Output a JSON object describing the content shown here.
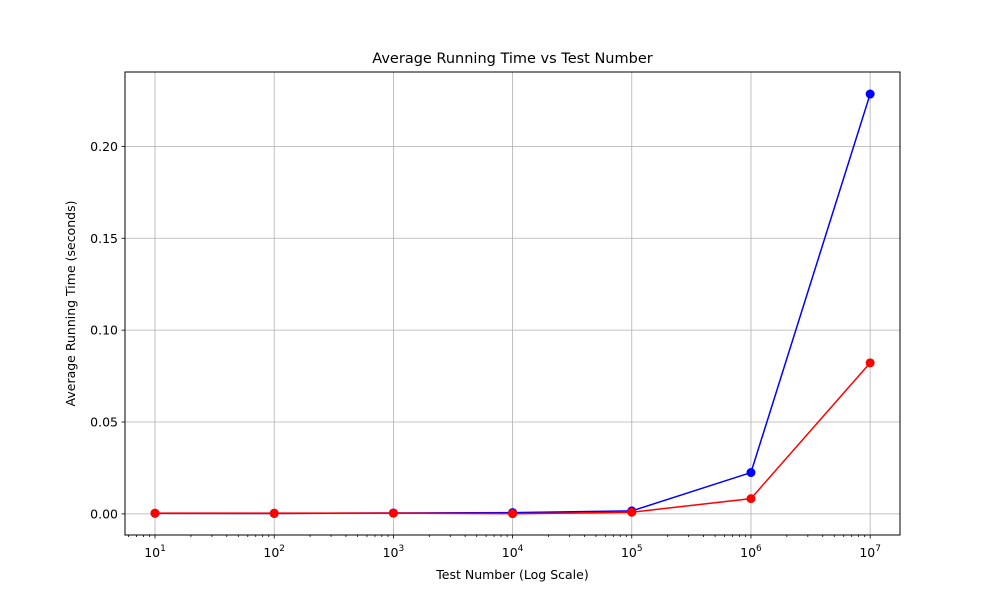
{
  "chart_data": {
    "type": "line",
    "title": "Average Running Time vs Test Number",
    "xlabel": "Test Number (Log Scale)",
    "ylabel": "Average Running Time (seconds)",
    "xscale": "log",
    "x": [
      10,
      100,
      1000,
      10000,
      100000,
      1000000,
      10000000
    ],
    "xlim": [
      5.6,
      17800000
    ],
    "xticks": [
      {
        "value": 10,
        "base": "10",
        "exp": "1"
      },
      {
        "value": 100,
        "base": "10",
        "exp": "2"
      },
      {
        "value": 1000,
        "base": "10",
        "exp": "3"
      },
      {
        "value": 10000,
        "base": "10",
        "exp": "4"
      },
      {
        "value": 100000,
        "base": "10",
        "exp": "5"
      },
      {
        "value": 1000000,
        "base": "10",
        "exp": "6"
      },
      {
        "value": 10000000,
        "base": "10",
        "exp": "7"
      }
    ],
    "ylim": [
      -0.0115,
      0.2405
    ],
    "yticks": [
      {
        "value": 0.0,
        "label": "0.00"
      },
      {
        "value": 0.05,
        "label": "0.05"
      },
      {
        "value": 0.1,
        "label": "0.10"
      },
      {
        "value": 0.15,
        "label": "0.15"
      },
      {
        "value": 0.2,
        "label": "0.20"
      }
    ],
    "grid": true,
    "series": [
      {
        "color": "#0000ff",
        "marker": "circle",
        "values": [
          0.0003,
          0.0002,
          0.0005,
          0.0007,
          0.0016,
          0.0225,
          0.2285
        ]
      },
      {
        "color": "#ff0000",
        "marker": "circle",
        "values": [
          0.0004,
          0.0004,
          0.0004,
          0.0001,
          0.0009,
          0.0083,
          0.0822
        ]
      }
    ]
  }
}
